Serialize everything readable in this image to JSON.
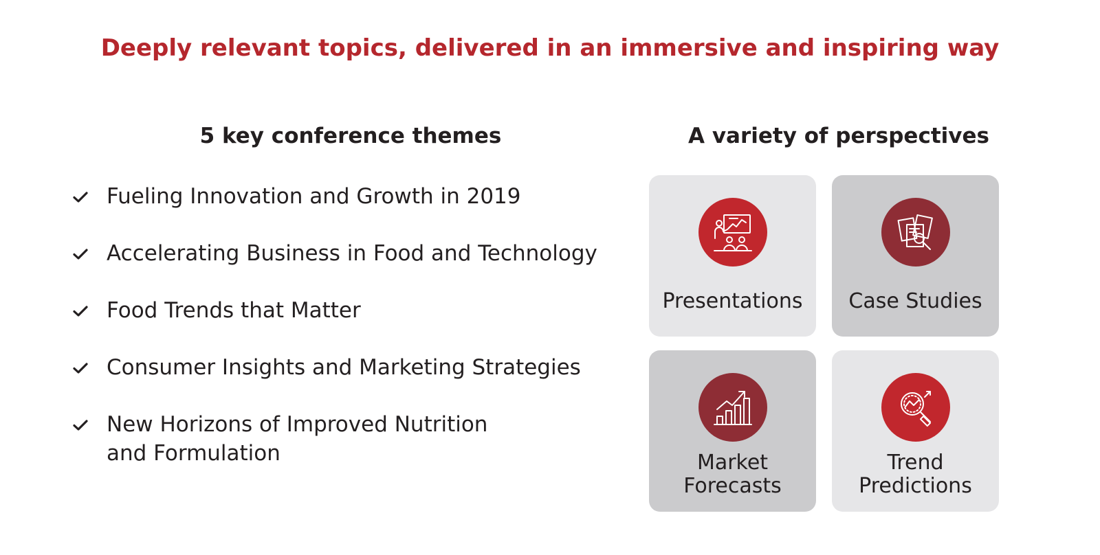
{
  "headline": "Deeply relevant topics, delivered in an immersive and inspiring way",
  "themes": {
    "title": "5 key conference themes",
    "items": [
      {
        "label": "Fueling Innovation and Growth in 2019",
        "icon": "checkmark-icon"
      },
      {
        "label": "Accelerating Business in Food and Technology",
        "icon": "checkmark-icon"
      },
      {
        "label": "Food Trends that Matter",
        "icon": "checkmark-icon"
      },
      {
        "label": "Consumer Insights and Marketing Strategies",
        "icon": "checkmark-icon"
      },
      {
        "label": "New Horizons of Improved Nutrition\nand Formulation",
        "icon": "checkmark-icon"
      }
    ]
  },
  "perspectives": {
    "title": "A variety of perspectives",
    "tiles": [
      {
        "label": "Presentations",
        "icon": "presentation-icon"
      },
      {
        "label": "Case Studies",
        "icon": "documents-magnifier-icon"
      },
      {
        "label": "Market\nForecasts",
        "icon": "growth-chart-icon"
      },
      {
        "label": "Trend\nPredictions",
        "icon": "trend-magnifier-icon"
      }
    ]
  },
  "colors": {
    "accent_red": "#b5272d",
    "badge_red": "#c1272d",
    "badge_maroon": "#8e2d35",
    "tile_light": "#e6e6e8",
    "tile_dark": "#cbcbcd",
    "text": "#231f20"
  }
}
